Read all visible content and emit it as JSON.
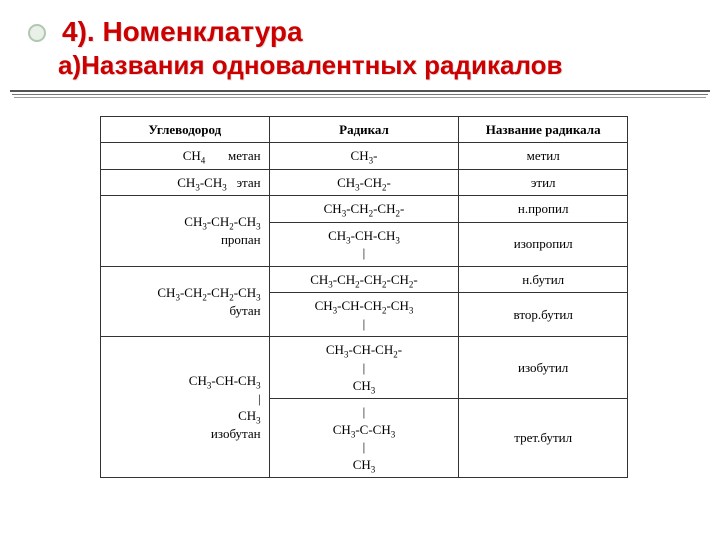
{
  "title_line1": "4). Номенклатура",
  "title_line2": "а)Названия одновалентных радикалов",
  "headers": {
    "c1": "Углеводород",
    "c2": "Радикал",
    "c3": "Название радикала"
  },
  "rows": {
    "r1": {
      "hc": "CH₄       метан",
      "rad": "CH₃-",
      "name": "метил"
    },
    "r2": {
      "hc": "CH₃-CH₃   этан",
      "rad": "CH₃-CH₂-",
      "name": "этил"
    },
    "r3": {
      "hc": "CH₃-CH₂-CH₃\nпропан",
      "rad_a": "CH₃-CH₂-CH₂-",
      "name_a": "н.пропил",
      "rad_b": "CH₃-CH-CH₃\n|",
      "name_b": "изопропил"
    },
    "r4": {
      "hc": "CH₃-CH₂-CH₂-CH₃\nбутан",
      "rad_a": "CH₃-CH₂-CH₂-CH₂-",
      "name_a": "н.бутил",
      "rad_b": "CH₃-CH-CH₂-CH₃\n|",
      "name_b": "втор.бутил"
    },
    "r5": {
      "hc": "CH₃-CH-CH₃\n|\nCH₃\nизобутан",
      "rad_a": "CH₃-CH-CH₂-\n|\nCH₃",
      "name_a": "изобутил",
      "rad_b": "|\nCH₃-C-CH₃\n|\nCH₃",
      "name_b": "трет.бутил"
    }
  }
}
